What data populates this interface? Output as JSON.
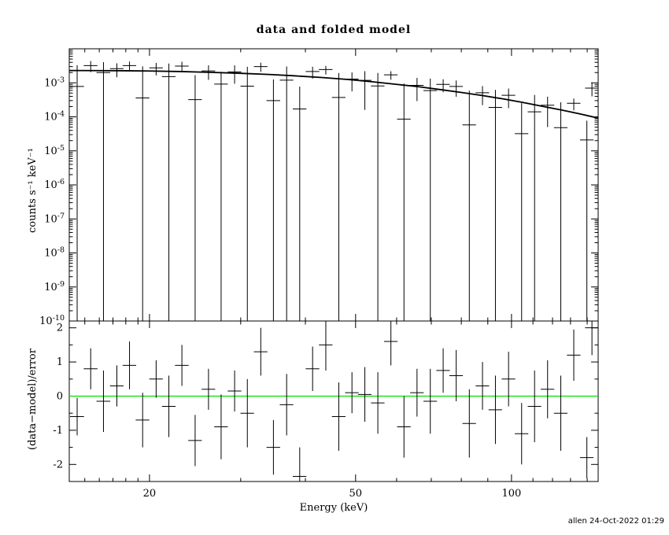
{
  "title": "data and folded model",
  "watermark": "allen 24-Oct-2022 01:29",
  "colors": {
    "foreground": "#000000",
    "background": "#ffffff",
    "zero_line": "#00dd00",
    "model": "#000000"
  },
  "chart_data": {
    "type": "scatter",
    "title": "data and folded model",
    "xlabel": "Energy (keV)",
    "xscale": "log",
    "xlim": [
      14,
      147
    ],
    "xticks_major": [
      20,
      50,
      100
    ],
    "xticks_minor": [
      15,
      16,
      17,
      18,
      19,
      30,
      40,
      60,
      70,
      80,
      90,
      110,
      120,
      130,
      140
    ],
    "panels": [
      {
        "name": "spectrum",
        "ylabel": "counts s⁻¹ keV⁻¹",
        "yscale": "log",
        "ylim_exp": [
          -10,
          -2
        ],
        "ytick_exponents": [
          -3,
          -4,
          -5,
          -6,
          -7,
          -8,
          -9,
          -10
        ],
        "points": {
          "e": [
            14.5,
            15.4,
            16.3,
            17.3,
            18.3,
            19.4,
            20.6,
            21.8,
            23.1,
            24.5,
            26.0,
            27.5,
            29.2,
            30.9,
            32.8,
            34.7,
            36.8,
            39.0,
            41.3,
            43.8,
            46.4,
            49.2,
            52.1,
            55.2,
            58.5,
            62.0,
            65.7,
            69.7,
            73.8,
            78.2,
            82.9,
            87.9,
            93.1,
            98.7,
            104.6,
            110.8,
            117.4,
            124.5,
            131.9,
            139.8,
            143.0
          ],
          "de": [
            0.45,
            0.47,
            0.5,
            0.52,
            0.55,
            0.59,
            0.62,
            0.66,
            0.7,
            0.74,
            0.78,
            0.83,
            0.88,
            0.93,
            0.99,
            1.05,
            1.11,
            1.18,
            1.25,
            1.32,
            1.4,
            1.48,
            1.57,
            1.66,
            1.76,
            1.87,
            1.98,
            2.1,
            2.22,
            2.35,
            2.49,
            2.64,
            2.8,
            2.97,
            3.14,
            3.33,
            3.53,
            3.74,
            3.96,
            4.2,
            4.3
          ],
          "y": [
            0.00078,
            0.0032,
            0.002,
            0.0026,
            0.0032,
            0.00036,
            0.00275,
            0.00152,
            0.0031,
            0.00032,
            0.00224,
            0.00092,
            0.0021,
            0.0008,
            0.003,
            0.0003,
            0.0012,
            0.00017,
            0.00215,
            0.00245,
            0.00037,
            0.00129,
            0.00118,
            0.00081,
            0.00171,
            8.6e-05,
            0.00084,
            0.00059,
            0.0009,
            0.00078,
            5.8e-05,
            0.00051,
            0.00019,
            0.00043,
            3.2e-05,
            0.00014,
            0.00022,
            4.8e-05,
            0.00025,
            2.1e-05,
            0.0007
          ],
          "yerr": [
            0.0025,
            0.00115,
            0.00205,
            0.00114,
            0.00101,
            0.00268,
            0.0011,
            0.00217,
            0.00107,
            0.00136,
            0.00102,
            0.00119,
            0.00116,
            0.00215,
            0.0009,
            0.00095,
            0.00182,
            0.0006,
            0.00082,
            0.0007,
            0.00157,
            0.00073,
            0.00102,
            0.00114,
            0.00048,
            0.00086,
            0.00055,
            0.00074,
            0.00037,
            0.00039,
            0.00053,
            0.00029,
            0.00043,
            0.00025,
            0.00022,
            0.0003,
            0.00017,
            0.00022,
            9.5e-05,
            5.6e-05,
            0.0003
          ]
        },
        "model": {
          "e": [
            14,
            16,
            18,
            20,
            23,
            26,
            30,
            34,
            38,
            43,
            48,
            54,
            60,
            66,
            73,
            80,
            88,
            96,
            105,
            115,
            125,
            135,
            147
          ],
          "y": [
            0.0023,
            0.00228,
            0.00226,
            0.00222,
            0.00214,
            0.00204,
            0.0019,
            0.00176,
            0.00161,
            0.00143,
            0.00126,
            0.00107,
            0.0009,
            0.00077,
            0.00063,
            0.00052,
            0.00042,
            0.00034,
            0.000266,
            0.000203,
            0.000158,
            0.000124,
            9.2e-05
          ]
        }
      },
      {
        "name": "residuals",
        "ylabel": "(data−model)/error",
        "ylim": [
          -2.5,
          2.2
        ],
        "yticks_major": [
          -2,
          -1,
          0,
          1,
          2
        ],
        "yticks_minor": [
          -1.5,
          -0.5,
          0.5,
          1.5
        ],
        "zero_line": 0,
        "points": {
          "e": [
            14.5,
            15.4,
            16.3,
            17.3,
            18.3,
            19.4,
            20.6,
            21.8,
            23.1,
            24.5,
            26.0,
            27.5,
            29.2,
            30.9,
            32.8,
            34.7,
            36.8,
            39.0,
            41.3,
            43.8,
            46.4,
            49.2,
            52.1,
            55.2,
            58.5,
            62.0,
            65.7,
            69.7,
            73.8,
            78.2,
            82.9,
            87.9,
            93.1,
            98.7,
            104.6,
            110.8,
            117.4,
            124.5,
            131.9,
            139.8,
            143.0
          ],
          "de": [
            0.45,
            0.47,
            0.5,
            0.52,
            0.55,
            0.59,
            0.62,
            0.66,
            0.7,
            0.74,
            0.78,
            0.83,
            0.88,
            0.93,
            0.99,
            1.05,
            1.11,
            1.18,
            1.25,
            1.32,
            1.4,
            1.48,
            1.57,
            1.66,
            1.76,
            1.87,
            1.98,
            2.1,
            2.22,
            2.35,
            2.49,
            2.64,
            2.8,
            2.97,
            3.14,
            3.33,
            3.53,
            3.74,
            3.96,
            4.2,
            4.3
          ],
          "r": [
            -0.6,
            0.8,
            -0.15,
            0.3,
            0.9,
            -0.7,
            0.5,
            -0.3,
            0.9,
            -1.3,
            0.2,
            -0.9,
            0.15,
            -0.5,
            1.3,
            -1.5,
            -0.25,
            -2.35,
            0.8,
            1.5,
            -0.6,
            0.1,
            0.05,
            -0.2,
            1.6,
            -0.9,
            0.1,
            -0.15,
            0.75,
            0.6,
            -0.8,
            0.3,
            -0.4,
            0.5,
            -1.1,
            -0.3,
            0.2,
            -0.5,
            1.2,
            -1.8,
            2.0
          ],
          "rerr": [
            0.55,
            0.6,
            0.9,
            0.6,
            0.7,
            0.8,
            0.55,
            0.9,
            0.6,
            0.75,
            0.6,
            0.95,
            0.6,
            1.0,
            0.7,
            0.8,
            0.9,
            0.85,
            0.65,
            0.75,
            1.0,
            0.6,
            0.8,
            0.9,
            0.7,
            0.9,
            0.7,
            0.95,
            0.65,
            0.75,
            1.0,
            0.7,
            1.0,
            0.8,
            0.9,
            1.05,
            0.85,
            1.1,
            0.75,
            0.6,
            0.8
          ]
        }
      }
    ]
  }
}
